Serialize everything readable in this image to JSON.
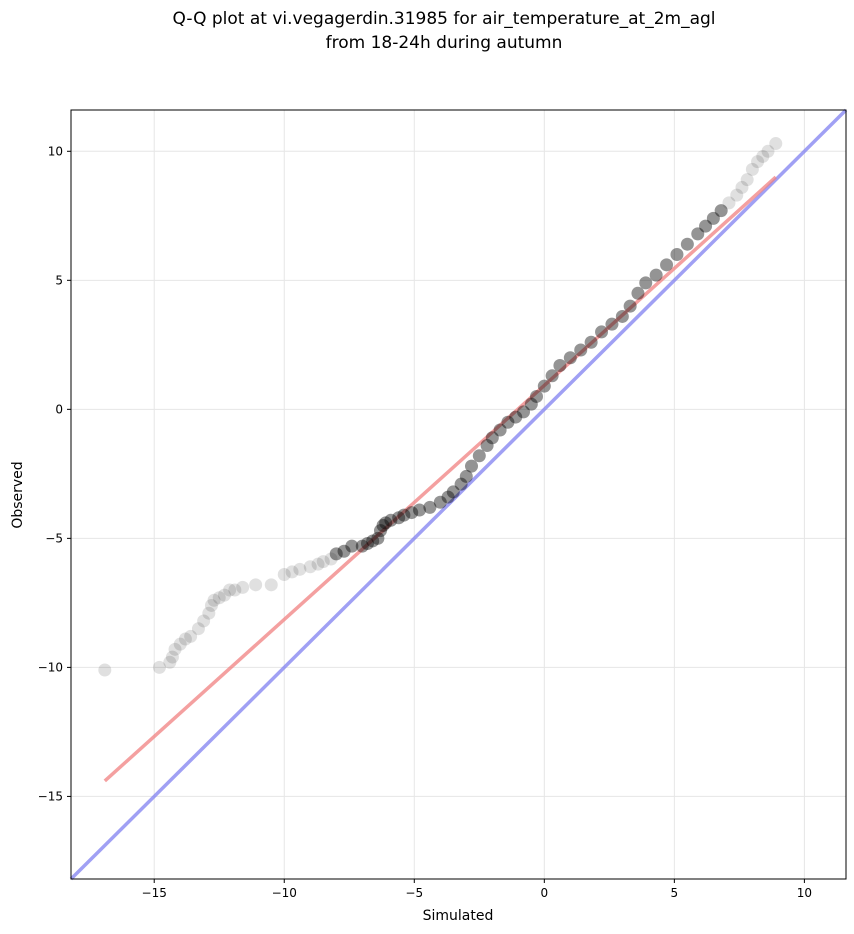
{
  "chart_data": {
    "type": "scatter",
    "title": [
      "Q-Q plot at vi.vegagerdin.31985 for air_temperature_at_2m_agl",
      "from 18-24h during autumn"
    ],
    "xlabel": "Simulated",
    "ylabel": "Observed",
    "xlim": [
      -18.2,
      11.6
    ],
    "ylim": [
      -18.2,
      11.6
    ],
    "xticks": [
      -15,
      -10,
      -5,
      0,
      5,
      10
    ],
    "yticks": [
      -15,
      -10,
      -5,
      0,
      5,
      10
    ],
    "xtick_labels": [
      "−15",
      "−10",
      "−5",
      "0",
      "5",
      "10"
    ],
    "ytick_labels": [
      "−15",
      "−10",
      "−5",
      "0",
      "5",
      "10"
    ],
    "grid": true,
    "colors": {
      "points": "#000000",
      "fit_line": "#f08080",
      "identity_line": "#8080f0",
      "grid": "#e6e6e6"
    },
    "series": [
      {
        "type": "scatter",
        "x": [
          -16.9,
          -14.8,
          -14.4,
          -14.3,
          -14.2,
          -14.0,
          -13.8,
          -13.6,
          -13.3,
          -13.1,
          -12.9,
          -12.8,
          -12.7,
          -12.5,
          -12.3,
          -12.1,
          -11.9,
          -11.6,
          -11.1,
          -10.5,
          -10.0,
          -9.7,
          -9.4,
          -9.0,
          -8.7,
          -8.5,
          -8.2,
          -8.0,
          -7.7,
          -7.4,
          -7.0,
          -6.8,
          -6.6,
          -6.4,
          -6.3,
          -6.2,
          -6.1,
          -5.9,
          -5.6,
          -5.4,
          -5.1,
          -4.8,
          -4.4,
          -4.0,
          -3.7,
          -3.5,
          -3.2,
          -3.0,
          -2.8,
          -2.5,
          -2.2,
          -2.0,
          -1.7,
          -1.4,
          -1.1,
          -0.8,
          -0.5,
          -0.3,
          0.0,
          0.3,
          0.6,
          1.0,
          1.4,
          1.8,
          2.2,
          2.6,
          3.0,
          3.3,
          3.6,
          3.9,
          4.3,
          4.7,
          5.1,
          5.5,
          5.9,
          6.2,
          6.5,
          6.8,
          7.1,
          7.4,
          7.6,
          7.8,
          8.0,
          8.2,
          8.4,
          8.6,
          8.9
        ],
        "y": [
          -10.1,
          -10.0,
          -9.8,
          -9.6,
          -9.3,
          -9.1,
          -8.9,
          -8.8,
          -8.5,
          -8.2,
          -7.9,
          -7.6,
          -7.4,
          -7.3,
          -7.2,
          -7.0,
          -7.0,
          -6.9,
          -6.8,
          -6.8,
          -6.4,
          -6.3,
          -6.2,
          -6.1,
          -6.0,
          -5.9,
          -5.8,
          -5.6,
          -5.5,
          -5.3,
          -5.3,
          -5.2,
          -5.1,
          -5.0,
          -4.7,
          -4.5,
          -4.4,
          -4.3,
          -4.2,
          -4.1,
          -4.0,
          -3.9,
          -3.8,
          -3.6,
          -3.4,
          -3.2,
          -2.9,
          -2.6,
          -2.2,
          -1.8,
          -1.4,
          -1.1,
          -0.8,
          -0.5,
          -0.3,
          -0.1,
          0.2,
          0.5,
          0.9,
          1.3,
          1.7,
          2.0,
          2.3,
          2.6,
          3.0,
          3.3,
          3.6,
          4.0,
          4.5,
          4.9,
          5.2,
          5.6,
          6.0,
          6.4,
          6.8,
          7.1,
          7.4,
          7.7,
          8.0,
          8.3,
          8.6,
          8.9,
          9.3,
          9.6,
          9.8,
          10.0,
          10.3
        ]
      },
      {
        "type": "line",
        "x": [
          -16.9,
          8.9
        ],
        "y": [
          -14.4,
          9.0
        ]
      },
      {
        "type": "line",
        "x": [
          -18.2,
          11.6
        ],
        "y": [
          -18.2,
          11.6
        ]
      }
    ]
  }
}
